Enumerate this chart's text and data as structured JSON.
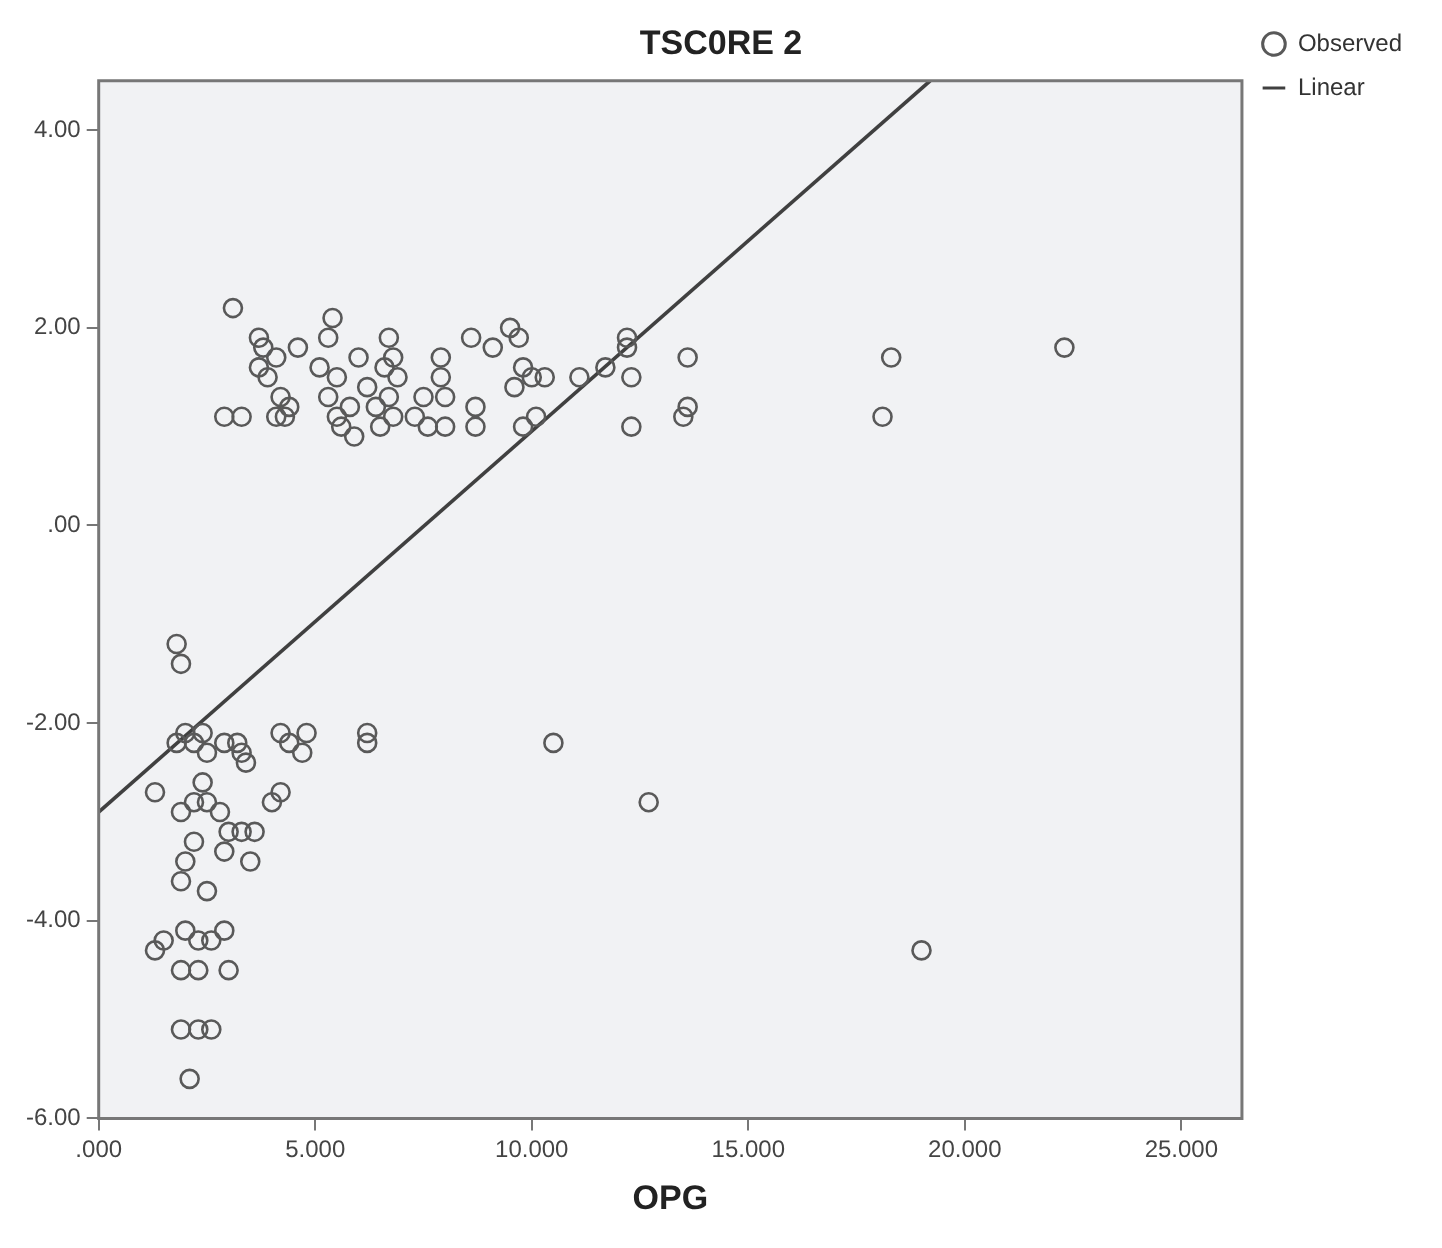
{
  "chart_data": {
    "type": "scatter",
    "title": "TSC0RE 2",
    "xlabel": "OPG",
    "xlim": [
      0,
      26.4
    ],
    "ylim": [
      -6,
      4.5
    ],
    "xticks": [
      {
        "value": 0,
        "label": ".000"
      },
      {
        "value": 5,
        "label": "5.000"
      },
      {
        "value": 10,
        "label": "10.000"
      },
      {
        "value": 15,
        "label": "15.000"
      },
      {
        "value": 20,
        "label": "20.000"
      },
      {
        "value": 25,
        "label": "25.000"
      }
    ],
    "yticks": [
      {
        "value": -6,
        "label": "-6.00"
      },
      {
        "value": -4,
        "label": "-4.00"
      },
      {
        "value": -2,
        "label": "-2.00"
      },
      {
        "value": 0,
        "label": ".00"
      },
      {
        "value": 2,
        "label": "2.00"
      },
      {
        "value": 4,
        "label": "4.00"
      }
    ],
    "grid": false,
    "legend": "top right",
    "series": [
      {
        "name": "Observed",
        "type": "scatter",
        "marker": "circle",
        "color": "#595959",
        "x": [
          3.1,
          2.9,
          3.3,
          3.7,
          3.8,
          3.7,
          4.1,
          3.9,
          4.2,
          4.4,
          4.1,
          4.3,
          4.6,
          5.1,
          5.3,
          5.4,
          5.5,
          5.3,
          5.5,
          5.6,
          5.8,
          5.9,
          6.0,
          6.2,
          6.4,
          6.5,
          6.6,
          6.7,
          6.8,
          6.9,
          6.7,
          6.8,
          7.3,
          7.5,
          7.6,
          7.9,
          7.9,
          8.0,
          8.0,
          8.6,
          8.7,
          8.7,
          9.1,
          9.5,
          9.7,
          9.8,
          9.6,
          10.0,
          10.1,
          9.8,
          10.3,
          11.1,
          11.7,
          12.2,
          12.2,
          12.3,
          12.3,
          13.6,
          13.6,
          13.5,
          18.1,
          18.3,
          22.3,
          1.8,
          1.9,
          1.8,
          2.0,
          2.2,
          2.4,
          2.5,
          2.9,
          3.2,
          3.4,
          3.3,
          4.2,
          4.4,
          4.7,
          4.8,
          6.2,
          6.2,
          1.3,
          1.9,
          2.2,
          2.4,
          2.5,
          2.8,
          4.0,
          4.2,
          3.0,
          3.3,
          3.6,
          3.5,
          2.0,
          1.9,
          2.2,
          2.5,
          2.9,
          2.0,
          2.3,
          2.6,
          2.9,
          1.3,
          1.5,
          1.9,
          2.3,
          3.0,
          1.9,
          2.3,
          2.6,
          2.1,
          10.5,
          12.7,
          19.0
        ],
        "values": [
          2.2,
          1.1,
          1.1,
          1.9,
          1.8,
          1.6,
          1.7,
          1.5,
          1.3,
          1.2,
          1.1,
          1.1,
          1.8,
          1.6,
          1.9,
          2.1,
          1.5,
          1.3,
          1.1,
          1.0,
          1.2,
          0.9,
          1.7,
          1.4,
          1.2,
          1.0,
          1.6,
          1.9,
          1.7,
          1.5,
          1.3,
          1.1,
          1.1,
          1.3,
          1.0,
          1.7,
          1.5,
          1.3,
          1.0,
          1.9,
          1.2,
          1.0,
          1.8,
          2.0,
          1.9,
          1.6,
          1.4,
          1.5,
          1.1,
          1.0,
          1.5,
          1.5,
          1.6,
          1.9,
          1.8,
          1.5,
          1.0,
          1.7,
          1.2,
          1.1,
          1.1,
          1.7,
          1.8,
          -1.2,
          -1.4,
          -2.2,
          -2.1,
          -2.2,
          -2.1,
          -2.3,
          -2.2,
          -2.2,
          -2.4,
          -2.3,
          -2.1,
          -2.2,
          -2.3,
          -2.1,
          -2.1,
          -2.2,
          -2.7,
          -2.9,
          -2.8,
          -2.6,
          -2.8,
          -2.9,
          -2.8,
          -2.7,
          -3.1,
          -3.1,
          -3.1,
          -3.4,
          -3.4,
          -3.6,
          -3.2,
          -3.7,
          -3.3,
          -4.1,
          -4.2,
          -4.2,
          -4.1,
          -4.3,
          -4.2,
          -4.5,
          -4.5,
          -4.5,
          -5.1,
          -5.1,
          -5.1,
          -5.6,
          -2.2,
          -2.8,
          -4.3
        ]
      },
      {
        "name": "Linear",
        "type": "line",
        "marker": "none",
        "color": "#404040",
        "x": [
          0,
          19.2
        ],
        "values": [
          -2.9,
          4.5
        ]
      }
    ]
  }
}
